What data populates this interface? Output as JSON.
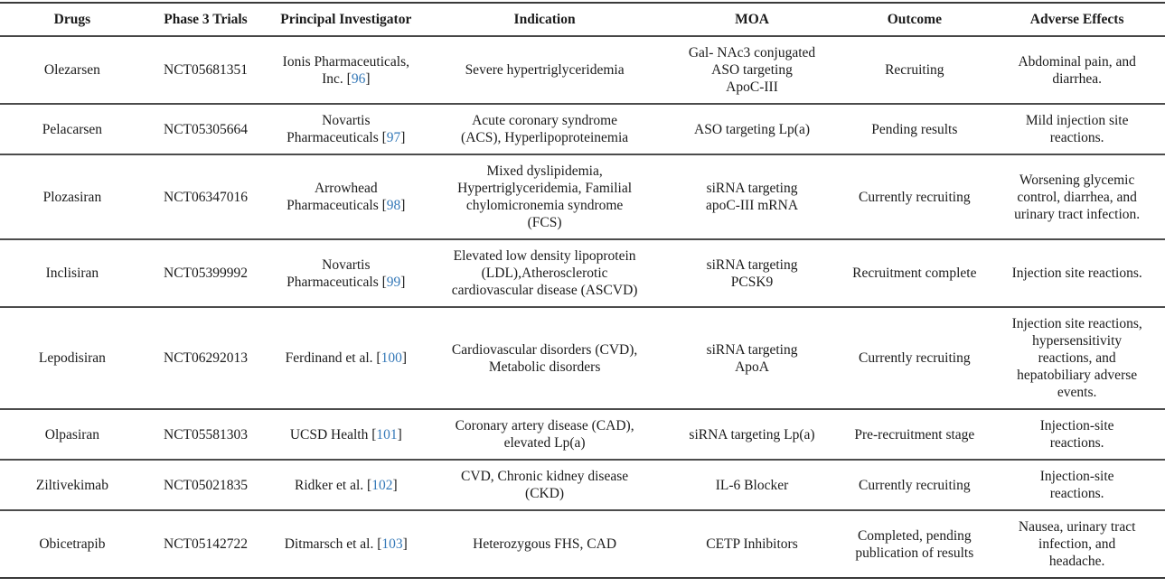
{
  "table": {
    "citation_color": "#3579b8",
    "columns": [
      {
        "key": "drug",
        "label": "Drugs"
      },
      {
        "key": "trial",
        "label": "Phase 3 Trials"
      },
      {
        "key": "investigator",
        "label": "Principal Investigator"
      },
      {
        "key": "indication",
        "label": "Indication"
      },
      {
        "key": "moa",
        "label": "MOA"
      },
      {
        "key": "outcome",
        "label": "Outcome"
      },
      {
        "key": "adverse",
        "label": "Adverse Effects"
      }
    ],
    "rows": [
      {
        "drug": "Olezarsen",
        "trial": "NCT05681351",
        "investigator": "Ionis Pharmaceuticals,\nInc.",
        "ref": "96",
        "indication": "Severe hypertriglyceridemia",
        "moa": "Gal- NAc3 conjugated\nASO targeting\nApoC-III",
        "outcome": "Recruiting",
        "adverse": "Abdominal pain, and\ndiarrhea."
      },
      {
        "drug": "Pelacarsen",
        "trial": "NCT05305664",
        "investigator": "Novartis\nPharmaceuticals",
        "ref": "97",
        "indication": "Acute coronary syndrome\n(ACS), Hyperlipoproteinemia",
        "moa": "ASO targeting Lp(a)",
        "outcome": "Pending results",
        "adverse": "Mild injection site\nreactions."
      },
      {
        "drug": "Plozasiran",
        "trial": "NCT06347016",
        "investigator": "Arrowhead\nPharmaceuticals",
        "ref": "98",
        "indication": "Mixed dyslipidemia,\nHypertriglyceridemia, Familial\nchylomicronemia syndrome\n(FCS)",
        "moa": "siRNA targeting\napoC-III mRNA",
        "outcome": "Currently recruiting",
        "adverse": "Worsening glycemic\ncontrol, diarrhea, and\nurinary tract infection."
      },
      {
        "drug": "Inclisiran",
        "trial": "NCT05399992",
        "investigator": "Novartis\nPharmaceuticals",
        "ref": "99",
        "indication": "Elevated low density lipoprotein\n(LDL),Atherosclerotic\ncardiovascular disease (ASCVD)",
        "moa": "siRNA targeting\nPCSK9",
        "outcome": "Recruitment complete",
        "adverse": "Injection site reactions."
      },
      {
        "drug": "Lepodisiran",
        "trial": "NCT06292013",
        "investigator": "Ferdinand et al.",
        "ref": "100",
        "indication": "Cardiovascular disorders (CVD),\nMetabolic disorders",
        "moa": "siRNA targeting\nApoA",
        "outcome": "Currently recruiting",
        "adverse": "Injection site reactions,\nhypersensitivity\nreactions, and\nhepatobiliary adverse\nevents."
      },
      {
        "drug": "Olpasiran",
        "trial": "NCT05581303",
        "investigator": "UCSD Health",
        "ref": "101",
        "indication": "Coronary artery disease (CAD),\nelevated Lp(a)",
        "moa": "siRNA targeting Lp(a)",
        "outcome": "Pre-recruitment stage",
        "adverse": "Injection-site\nreactions."
      },
      {
        "drug": "Ziltivekimab",
        "trial": "NCT05021835",
        "investigator": "Ridker et al.",
        "ref": "102",
        "indication": "CVD, Chronic kidney disease\n(CKD)",
        "moa": "IL-6 Blocker",
        "outcome": "Currently recruiting",
        "adverse": "Injection-site\nreactions."
      },
      {
        "drug": "Obicetrapib",
        "trial": "NCT05142722",
        "investigator": "Ditmarsch et al.",
        "ref": "103",
        "indication": "Heterozygous FHS, CAD",
        "moa": "CETP Inhibitors",
        "outcome": "Completed, pending\npublication of results",
        "adverse": "Nausea, urinary tract\ninfection, and\nheadache."
      }
    ]
  }
}
